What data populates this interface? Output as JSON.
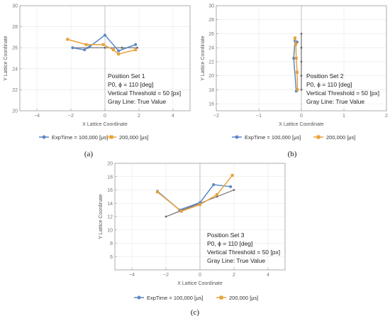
{
  "figure": {
    "panel_labels": [
      "(a)",
      "(b)",
      "(c)"
    ]
  },
  "legend": {
    "series1_label": "ExpTime = 100,000 [μs]",
    "series2_label": "200,000 [μs]"
  },
  "colors": {
    "series1": "#5b87c5",
    "series2": "#e8a23a",
    "truth": "#6b6b6b",
    "frame": "#9a9a9a",
    "grid": "#e6e6e6"
  },
  "chart_data": [
    {
      "type": "line",
      "xlabel": "X Lattice Coordinate",
      "ylabel": "Y Lattice Coordinate",
      "xlim": [
        -5,
        5
      ],
      "ylim": [
        20,
        30
      ],
      "xticks": [
        -4,
        -2,
        0,
        2,
        4
      ],
      "yticks": [
        20,
        22,
        24,
        26,
        28,
        30
      ],
      "annotation": [
        "Position Set 1",
        "P0, ϕ = 110 [deg]",
        "Vertical Threshold = 50 [px]",
        "Gray Line: True Value"
      ],
      "series": [
        {
          "name": "ExpTime = 100,000 [μs]",
          "x": [
            -1.9,
            -1.2,
            -0.9,
            0,
            0.8,
            1.8
          ],
          "y": [
            26.0,
            25.8,
            26.1,
            27.2,
            25.7,
            26.3
          ]
        },
        {
          "name": "200,000 [μs]",
          "x": [
            -2.2,
            -1.1,
            -0.1,
            0.5,
            0.8,
            1.8
          ],
          "y": [
            26.8,
            26.3,
            26.3,
            25.8,
            25.4,
            25.8
          ]
        },
        {
          "name": "true",
          "x": [
            -1.9,
            -1.0,
            0,
            1.0,
            1.9
          ],
          "y": [
            26.0,
            26.0,
            26.0,
            26.0,
            26.0
          ]
        }
      ]
    },
    {
      "type": "line",
      "xlabel": "X Lattice Coordinate",
      "ylabel": "Y Lattice Coordinate",
      "xlim": [
        -2,
        2
      ],
      "ylim": [
        15,
        30
      ],
      "xticks": [
        -2,
        -1,
        0,
        1,
        2
      ],
      "yticks": [
        16,
        18,
        20,
        22,
        24,
        26,
        28,
        30
      ],
      "annotation": [
        "Position Set 2",
        "P0, ϕ = 110 [deg]",
        "Vertical Threshold = 50 [px]",
        "Gray Line: True Value"
      ],
      "series": [
        {
          "name": "ExpTime = 100,000 [μs]",
          "x": [
            -0.12,
            -0.18,
            -0.15,
            -0.1
          ],
          "y": [
            17.8,
            22.5,
            25.0,
            24.8
          ]
        },
        {
          "name": "200,000 [μs]",
          "x": [
            -0.09,
            -0.1,
            -0.12,
            -0.13,
            -0.15
          ],
          "y": [
            18.0,
            20.5,
            22.5,
            24.5,
            25.4
          ]
        },
        {
          "name": "true",
          "x": [
            0,
            0,
            0,
            0,
            0
          ],
          "y": [
            18,
            20,
            22,
            24,
            26
          ]
        }
      ]
    },
    {
      "type": "line",
      "xlabel": "X Lattice Coordinate",
      "ylabel": "Y Lattice Coordinate",
      "xlim": [
        -5,
        5
      ],
      "ylim": [
        4,
        20
      ],
      "xticks": [
        -4,
        -2,
        0,
        2,
        4
      ],
      "yticks": [
        6,
        8,
        10,
        12,
        14,
        16,
        18,
        20
      ],
      "annotation": [
        "Position Set 3",
        "P0, ϕ = 110 [deg]",
        "Vertical Threshold = 50 [px]",
        "Gray Line: True Value"
      ],
      "series": [
        {
          "name": "ExpTime = 100,000 [μs]",
          "x": [
            -2.5,
            -1.2,
            0,
            0.8,
            1.8
          ],
          "y": [
            15.8,
            13.0,
            14.1,
            16.8,
            16.5
          ]
        },
        {
          "name": "200,000 [μs]",
          "x": [
            -2.5,
            -1.1,
            0,
            1.0,
            1.9
          ],
          "y": [
            15.7,
            12.8,
            13.8,
            15.3,
            18.2
          ]
        },
        {
          "name": "true",
          "x": [
            -2.0,
            -1.0,
            0,
            1.0,
            2.0
          ],
          "y": [
            12.0,
            13.0,
            14.0,
            15.0,
            16.0
          ]
        }
      ]
    }
  ]
}
